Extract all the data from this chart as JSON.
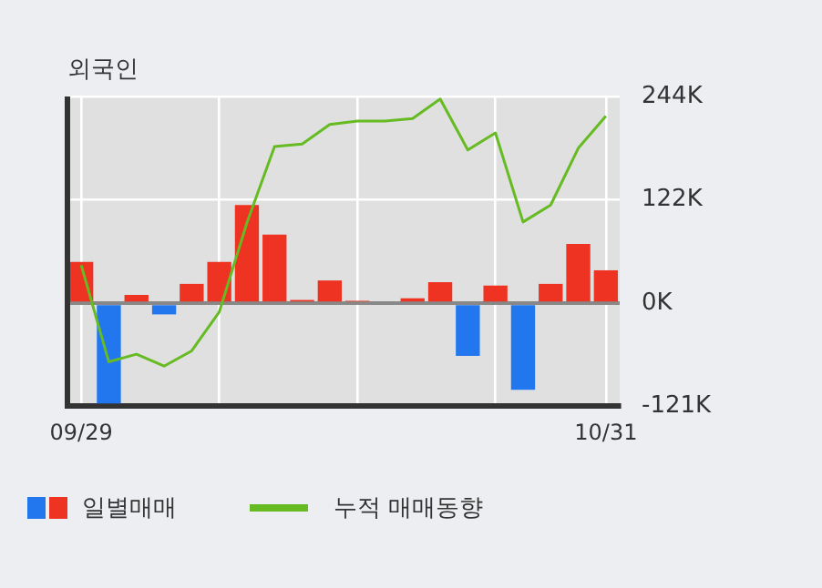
{
  "chart_data": {
    "type": "bar",
    "title": "외국인",
    "categories": [
      "09/29",
      null,
      null,
      null,
      null,
      null,
      null,
      null,
      null,
      null,
      null,
      null,
      null,
      null,
      null,
      null,
      null,
      null,
      null,
      "10/31"
    ],
    "series": [
      {
        "name": "일별매매",
        "values": [
          49,
          -118,
          10,
          -13,
          23,
          49,
          116,
          81,
          4,
          27,
          3,
          0,
          6,
          25,
          -62,
          21,
          -102,
          23,
          70,
          39
        ],
        "colors": [
          "#ee3322",
          "#2277ee",
          "#ee3322",
          "#2277ee",
          "#ee3322",
          "#ee3322",
          "#ee3322",
          "#ee3322",
          "#ee3322",
          "#ee3322",
          "#ee3322",
          "#ee3322",
          "#ee3322",
          "#ee3322",
          "#2277ee",
          "#ee3322",
          "#2277ee",
          "#ee3322",
          "#ee3322",
          "#ee3322"
        ]
      },
      {
        "name": "누적 매매동향",
        "type": "line",
        "color": "#66bb22",
        "values": [
          45,
          -69,
          -60,
          -74,
          -56,
          -10,
          95,
          185,
          188,
          211,
          215,
          215,
          218,
          241,
          181,
          201,
          96,
          116,
          183,
          221
        ]
      }
    ],
    "ylim": [
      -121,
      244
    ],
    "yticks": [
      {
        "value": -121,
        "label": "-121K"
      },
      {
        "value": 0,
        "label": "0K"
      },
      {
        "value": 122,
        "label": "122K"
      },
      {
        "value": 244,
        "label": "244K"
      }
    ],
    "grid": true,
    "legend": "bottom",
    "marker": "none",
    "line_style": "solid"
  }
}
